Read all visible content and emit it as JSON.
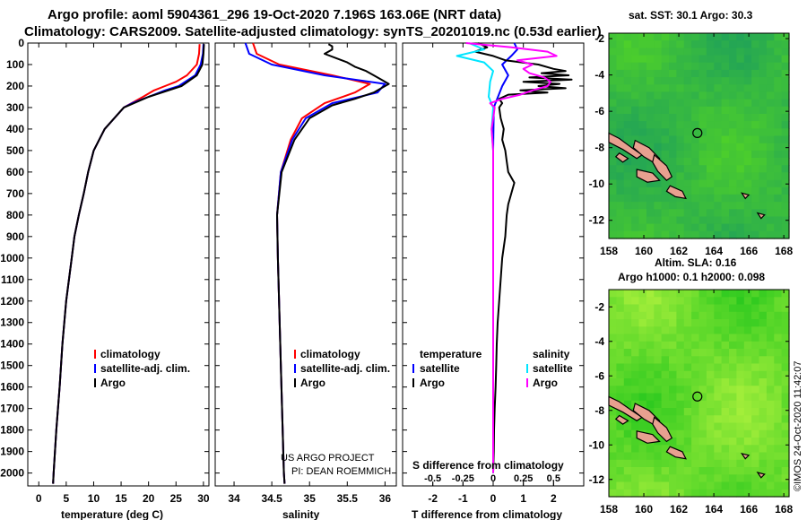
{
  "header": {
    "line1": "Argo profile: aoml 5904361_296 19-Oct-2020 7.196S 163.06E (NRT data)",
    "line2": "Climatology: CARS2009. Satellite-adjusted climatology: synTS_20201019.nc (0.53d earlier)"
  },
  "colors": {
    "climatology": "#ff0000",
    "satellite": "#0000ff",
    "argo": "#000000",
    "sat_salinity": "#00e5ff",
    "argo_salinity": "#ff00ff",
    "land": "#e8a090"
  },
  "depth_axis": {
    "ticks": [
      "0",
      "100",
      "200",
      "300",
      "400",
      "500",
      "600",
      "700",
      "800",
      "900",
      "1000",
      "1100",
      "1200",
      "1300",
      "1400",
      "1500",
      "1600",
      "1700",
      "1800",
      "1900",
      "2000"
    ]
  },
  "chart_data": [
    {
      "type": "line",
      "id": "temperature",
      "xlabel": "temperature (deg C)",
      "xlim": [
        -2,
        31
      ],
      "ylim": [
        2060,
        0
      ],
      "xticks": [
        "0",
        "5",
        "10",
        "15",
        "20",
        "25",
        "30"
      ],
      "legend": [
        "climatology",
        "satellite-adj. clim.",
        "Argo"
      ],
      "series": [
        {
          "name": "climatology",
          "color": "#ff0000",
          "y": [
            5,
            50,
            100,
            150,
            180,
            200,
            220,
            250,
            300,
            400,
            500,
            600,
            700,
            800,
            900,
            1000,
            1200,
            1400,
            1600,
            1800,
            2000,
            2050
          ],
          "x": [
            29.3,
            29.2,
            28.8,
            27.0,
            25.0,
            23.0,
            21.0,
            19.0,
            15.5,
            12.0,
            10.0,
            9.0,
            8.2,
            7.3,
            6.5,
            6.0,
            5.0,
            4.3,
            3.8,
            3.2,
            2.7,
            2.6
          ]
        },
        {
          "name": "satellite-adj. clim.",
          "color": "#0000ff",
          "y": [
            5,
            50,
            100,
            150,
            200,
            220,
            250,
            280,
            300,
            400,
            500,
            600,
            700,
            800,
            900,
            1000,
            1200,
            1400,
            1600,
            1800,
            2000,
            2050
          ],
          "x": [
            30.0,
            29.9,
            29.5,
            28.5,
            25.5,
            23.0,
            20.0,
            17.0,
            15.5,
            12.0,
            10.0,
            9.0,
            8.2,
            7.3,
            6.5,
            6.0,
            5.0,
            4.3,
            3.8,
            3.2,
            2.7,
            2.6
          ]
        },
        {
          "name": "Argo",
          "color": "#000000",
          "y": [
            5,
            50,
            100,
            150,
            200,
            250,
            300,
            400,
            500,
            600,
            700,
            800,
            900,
            1000,
            1200,
            1400,
            1600,
            1800,
            2000,
            2050
          ],
          "x": [
            30.1,
            30.0,
            29.8,
            28.8,
            26.0,
            20.0,
            15.5,
            12.0,
            10.0,
            9.0,
            8.2,
            7.3,
            6.5,
            6.0,
            5.0,
            4.3,
            3.8,
            3.2,
            2.7,
            2.6
          ]
        }
      ]
    },
    {
      "type": "line",
      "id": "salinity",
      "xlabel": "salinity",
      "xlim": [
        33.75,
        36.15
      ],
      "ylim": [
        2060,
        0
      ],
      "xticks": [
        "34",
        "34.5",
        "35",
        "35.5",
        "36"
      ],
      "legend": [
        "climatology",
        "satellite-adj. clim.",
        "Argo"
      ],
      "credit": [
        "US ARGO PROJECT",
        "PI: DEAN ROEMMICH"
      ],
      "series": [
        {
          "name": "climatology",
          "color": "#ff0000",
          "y": [
            0,
            50,
            100,
            150,
            190,
            230,
            280,
            350,
            450,
            600,
            800,
            1000,
            1500,
            2000,
            2050
          ],
          "x": [
            34.25,
            34.3,
            34.6,
            35.3,
            35.8,
            35.6,
            35.2,
            34.9,
            34.75,
            34.62,
            34.57,
            34.58,
            34.62,
            34.66,
            34.67
          ]
        },
        {
          "name": "satellite-adj. clim.",
          "color": "#0000ff",
          "y": [
            0,
            50,
            100,
            150,
            190,
            230,
            280,
            350,
            450,
            600,
            800,
            1000,
            1500,
            2000,
            2050
          ],
          "x": [
            34.15,
            34.2,
            34.5,
            35.2,
            36.0,
            35.9,
            35.3,
            34.95,
            34.77,
            34.62,
            34.57,
            34.58,
            34.62,
            34.66,
            34.67
          ]
        },
        {
          "name": "Argo",
          "color": "#000000",
          "y": [
            5,
            15,
            30,
            50,
            70,
            90,
            110,
            130,
            150,
            170,
            190,
            210,
            230,
            260,
            290,
            350,
            450,
            600,
            800,
            1000,
            1500,
            2000,
            2050
          ],
          "x": [
            35.25,
            35.3,
            35.3,
            35.2,
            35.35,
            35.5,
            35.6,
            35.75,
            35.85,
            35.95,
            36.05,
            35.95,
            35.85,
            35.6,
            35.3,
            35.0,
            34.8,
            34.63,
            34.57,
            34.58,
            34.62,
            34.66,
            34.67
          ]
        }
      ]
    },
    {
      "type": "line",
      "id": "differences",
      "xlabel": "T difference from climatology",
      "xlabel2": "S difference from climatology",
      "xlim": [
        -3.0,
        3.0
      ],
      "ylim": [
        2060,
        0
      ],
      "xticks": [
        "-2",
        "-1",
        "0",
        "1",
        "2"
      ],
      "xticks2": [
        "-0.5",
        "-0.25",
        "0",
        "0.25",
        "0.5"
      ],
      "xticks2_values": [
        -0.5,
        -0.25,
        0,
        0.25,
        0.5
      ],
      "s_diff_scale": 4,
      "legend_temperature_title": "temperature",
      "legend_salinity_title": "salinity",
      "legend_temperature": [
        "satellite",
        "Argo"
      ],
      "legend_salinity": [
        "satellite",
        "Argo"
      ],
      "series": [
        {
          "name": "T satellite",
          "color": "#0000ff",
          "y": [
            0,
            30,
            60,
            100,
            150,
            200,
            300,
            500,
            1000,
            2000
          ],
          "x": [
            0.7,
            0.8,
            0.6,
            0.3,
            0.5,
            0.3,
            0.02,
            0.0,
            0.0,
            0.0
          ]
        },
        {
          "name": "T Argo",
          "color": "#000000",
          "y": [
            0,
            20,
            40,
            60,
            80,
            100,
            120,
            130,
            140,
            150,
            160,
            170,
            180,
            190,
            200,
            210,
            220,
            230,
            240,
            260,
            280,
            300,
            350,
            400,
            450,
            500,
            550,
            600,
            650,
            700,
            750,
            800,
            900,
            1000,
            1100,
            1200,
            1300,
            1400,
            1500,
            1600,
            1700,
            1800,
            1900,
            2000
          ],
          "x": [
            -0.5,
            -0.2,
            -0.6,
            0.0,
            0.4,
            1.5,
            2.0,
            2.4,
            1.6,
            2.5,
            1.2,
            2.6,
            1.0,
            2.2,
            1.5,
            2.4,
            0.9,
            1.8,
            0.5,
            0.2,
            0.3,
            0.2,
            0.25,
            0.35,
            0.3,
            0.4,
            0.45,
            0.5,
            0.7,
            0.6,
            0.5,
            0.45,
            0.4,
            0.3,
            0.25,
            0.2,
            0.15,
            0.12,
            0.1,
            0.08,
            0.05,
            0.03,
            0.02,
            0.0
          ]
        },
        {
          "name": "S satellite",
          "color": "#00e5ff",
          "y": [
            0,
            30,
            60,
            90,
            130,
            180,
            250,
            300,
            400,
            500,
            700,
            1000,
            1500,
            2000
          ],
          "x": [
            -0.8,
            -0.3,
            -1.2,
            -0.3,
            0.0,
            -0.1,
            -0.15,
            0.0,
            -0.05,
            0.0,
            0.0,
            0.0,
            0.0,
            0.0
          ]
        },
        {
          "name": "S Argo",
          "color": "#ff00ff",
          "y": [
            0,
            20,
            40,
            60,
            80,
            100,
            120,
            140,
            160,
            180,
            200,
            220,
            240,
            260,
            280,
            300,
            400,
            500,
            700,
            1000,
            1500,
            2000
          ],
          "x": [
            -0.9,
            0.6,
            1.8,
            2.1,
            0.8,
            1.3,
            1.0,
            1.2,
            1.7,
            1.9,
            1.8,
            1.3,
            0.9,
            0.3,
            -0.1,
            0.05,
            -0.05,
            0.0,
            0.0,
            0.0,
            0.0,
            0.0
          ]
        }
      ]
    },
    {
      "type": "heatmap",
      "id": "sst_map",
      "title": "sat. SST: 30.1 Argo: 30.3",
      "xlim": [
        158,
        168.3
      ],
      "ylim": [
        -13,
        -1.7
      ],
      "xticks": [
        "158",
        "160",
        "162",
        "164",
        "166",
        "168"
      ],
      "yticks": [
        "-2",
        "-4",
        "-6",
        "-8",
        "-10",
        "-12"
      ],
      "xtick_values": [
        158,
        160,
        162,
        164,
        166,
        168
      ],
      "ytick_values": [
        -2,
        -4,
        -6,
        -8,
        -10,
        -12
      ],
      "marker": {
        "lon": 163.06,
        "lat": -7.196
      }
    },
    {
      "type": "heatmap",
      "id": "sla_map",
      "title": "Altim. SLA: 0.16",
      "title2": "Argo h1000: 0.1 h2000: 0.098",
      "xlim": [
        158,
        168.3
      ],
      "ylim": [
        -13,
        -1.0
      ],
      "xticks": [
        "158",
        "160",
        "162",
        "164",
        "166",
        "168"
      ],
      "yticks": [
        "-2",
        "-4",
        "-6",
        "-8",
        "-10",
        "-12"
      ],
      "xtick_values": [
        158,
        160,
        162,
        164,
        166,
        168
      ],
      "ytick_values": [
        -2,
        -4,
        -6,
        -8,
        -10,
        -12
      ],
      "marker": {
        "lon": 163.06,
        "lat": -7.196
      }
    }
  ],
  "footer": {
    "credit": "©IMOS 24-Oct-2020 11:42:07"
  }
}
